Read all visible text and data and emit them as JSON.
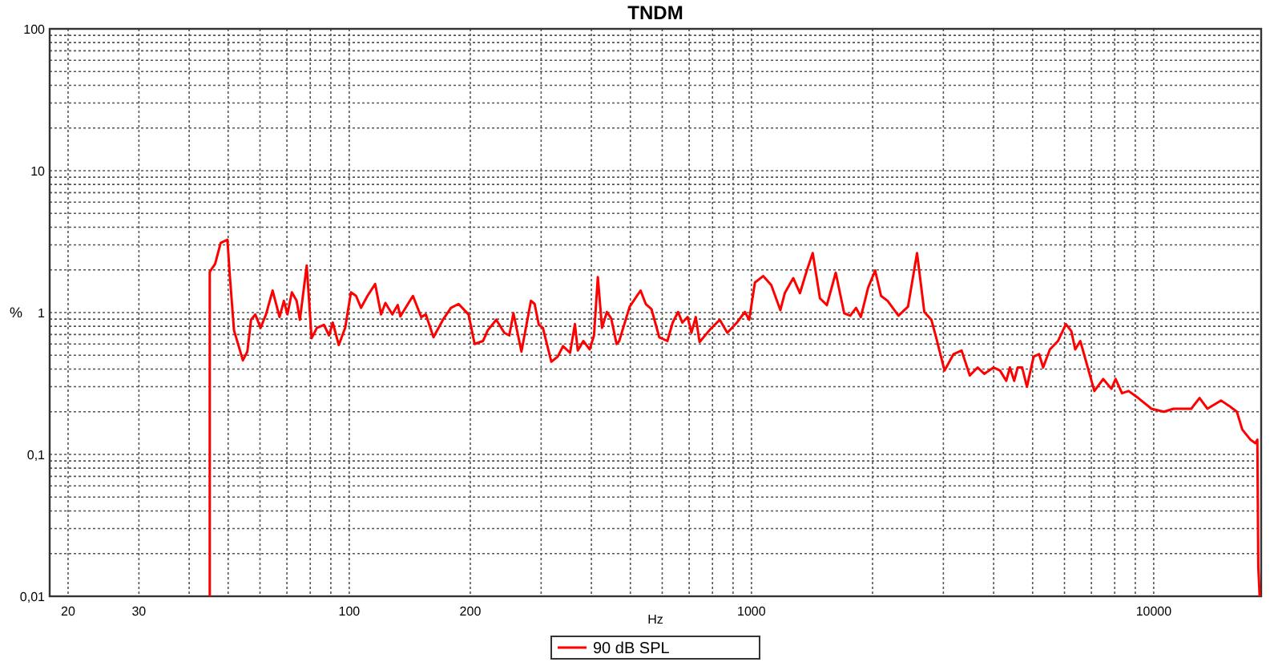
{
  "chart_data": {
    "type": "line",
    "title": "TNDM",
    "xlabel": "Hz",
    "ylabel": "%",
    "log": "xy",
    "grid": true,
    "legend": "bottom",
    "xlim": [
      18,
      18500
    ],
    "ylim": [
      0.01,
      100
    ],
    "xticks": [
      20,
      30,
      {
        "value": 40,
        "label": null
      },
      {
        "value": 50,
        "label": null
      },
      {
        "value": 60,
        "label": null
      },
      {
        "value": 70,
        "label": null
      },
      {
        "value": 80,
        "label": null
      },
      {
        "value": 90,
        "label": null
      },
      100,
      200,
      {
        "value": 300,
        "label": null
      },
      {
        "value": 400,
        "label": null
      },
      {
        "value": 500,
        "label": null
      },
      {
        "value": 600,
        "label": null
      },
      {
        "value": 700,
        "label": null
      },
      {
        "value": 800,
        "label": null
      },
      {
        "value": 900,
        "label": null
      },
      1000,
      {
        "value": 2000,
        "label": null
      },
      {
        "value": 3000,
        "label": null
      },
      {
        "value": 4000,
        "label": null
      },
      {
        "value": 5000,
        "label": null
      },
      {
        "value": 6000,
        "label": null
      },
      {
        "value": 7000,
        "label": null
      },
      {
        "value": 8000,
        "label": null
      },
      {
        "value": 9000,
        "label": null
      },
      10000
    ],
    "yticks": [
      {
        "value": 0.01,
        "label": "0,01"
      },
      {
        "value": 0.02,
        "label": null
      },
      {
        "value": 0.03,
        "label": null
      },
      {
        "value": 0.04,
        "label": null
      },
      {
        "value": 0.05,
        "label": null
      },
      {
        "value": 0.06,
        "label": null
      },
      {
        "value": 0.07,
        "label": null
      },
      {
        "value": 0.08,
        "label": null
      },
      {
        "value": 0.09,
        "label": null
      },
      {
        "value": 0.1,
        "label": "0,1"
      },
      {
        "value": 0.2,
        "label": null
      },
      {
        "value": 0.3,
        "label": null
      },
      {
        "value": 0.4,
        "label": null
      },
      {
        "value": 0.5,
        "label": null
      },
      {
        "value": 0.6,
        "label": null
      },
      {
        "value": 0.7,
        "label": null
      },
      {
        "value": 0.8,
        "label": null
      },
      {
        "value": 0.9,
        "label": null
      },
      1,
      {
        "value": 2,
        "label": null
      },
      {
        "value": 3,
        "label": null
      },
      {
        "value": 4,
        "label": null
      },
      {
        "value": 5,
        "label": null
      },
      {
        "value": 6,
        "label": null
      },
      {
        "value": 7,
        "label": null
      },
      {
        "value": 8,
        "label": null
      },
      {
        "value": 9,
        "label": null
      },
      10,
      {
        "value": 20,
        "label": null
      },
      {
        "value": 30,
        "label": null
      },
      {
        "value": 40,
        "label": null
      },
      {
        "value": 50,
        "label": null
      },
      {
        "value": 60,
        "label": null
      },
      {
        "value": 70,
        "label": null
      },
      {
        "value": 80,
        "label": null
      },
      {
        "value": 90,
        "label": null
      },
      100
    ],
    "series": [
      {
        "name": "90 dB SPL",
        "color": "#ff0000",
        "x": [
          45.0,
          45.0,
          46.4,
          47.9,
          49.8,
          50.4,
          51.7,
          54.4,
          55.8,
          57.0,
          58.4,
          60.2,
          62.1,
          64.5,
          67.1,
          68.8,
          70.2,
          72.0,
          74.0,
          75.4,
          78.4,
          80.6,
          83.1,
          86.5,
          89.1,
          91.0,
          94.2,
          97.7,
          101,
          104,
          107,
          111,
          116,
          120,
          123,
          128,
          132,
          134,
          144,
          151,
          155,
          162,
          171,
          179,
          187,
          198,
          205,
          215,
          221,
          232,
          243,
          250,
          256,
          268,
          283,
          289,
          296,
          303,
          318,
          330,
          340,
          354,
          364,
          370,
          382,
          396,
          406,
          415,
          425,
          437,
          448,
          462,
          469,
          498,
          530,
          546,
          564,
          590,
          618,
          637,
          657,
          673,
          694,
          709,
          727,
          743,
          789,
          834,
          871,
          920,
          963,
          987,
          1020,
          1070,
          1120,
          1180,
          1210,
          1270,
          1320,
          1370,
          1420,
          1480,
          1540,
          1620,
          1700,
          1760,
          1820,
          1870,
          1950,
          2030,
          2100,
          2180,
          2320,
          2450,
          2580,
          2690,
          2800,
          2870,
          3020,
          3180,
          3330,
          3490,
          3650,
          3790,
          4000,
          4150,
          4300,
          4390,
          4500,
          4590,
          4710,
          4840,
          5030,
          5190,
          5310,
          5520,
          5780,
          6050,
          6240,
          6380,
          6570,
          7120,
          7490,
          7850,
          8040,
          8340,
          8660,
          9150,
          9870,
          10600,
          11200,
          11700,
          12400,
          13000,
          13600,
          14700,
          15400,
          16100,
          16600,
          17400,
          17900,
          18100,
          18200,
          18340
        ],
        "values": [
          0.01,
          1.94,
          2.2,
          3.1,
          3.26,
          1.94,
          0.75,
          0.46,
          0.53,
          0.89,
          0.97,
          0.78,
          0.97,
          1.43,
          0.93,
          1.21,
          0.97,
          1.39,
          1.21,
          0.89,
          2.15,
          0.66,
          0.78,
          0.82,
          0.69,
          0.85,
          0.59,
          0.78,
          1.39,
          1.31,
          1.08,
          1.31,
          1.59,
          0.97,
          1.17,
          0.97,
          1.13,
          0.94,
          1.31,
          0.93,
          0.97,
          0.67,
          0.89,
          1.08,
          1.15,
          0.97,
          0.6,
          0.63,
          0.75,
          0.89,
          0.72,
          0.69,
          0.99,
          0.53,
          1.21,
          1.15,
          0.82,
          0.78,
          0.45,
          0.49,
          0.58,
          0.52,
          0.83,
          0.54,
          0.63,
          0.55,
          0.69,
          1.78,
          0.78,
          1.01,
          0.91,
          0.6,
          0.63,
          1.1,
          1.43,
          1.15,
          1.06,
          0.67,
          0.63,
          0.85,
          1.01,
          0.85,
          0.93,
          0.72,
          0.93,
          0.62,
          0.76,
          0.89,
          0.72,
          0.85,
          1.01,
          0.89,
          1.63,
          1.81,
          1.56,
          1.04,
          1.37,
          1.75,
          1.37,
          1.94,
          2.63,
          1.26,
          1.13,
          1.91,
          0.99,
          0.95,
          1.08,
          0.93,
          1.5,
          1.98,
          1.31,
          1.21,
          0.95,
          1.1,
          2.63,
          1.01,
          0.89,
          0.69,
          0.39,
          0.51,
          0.54,
          0.36,
          0.41,
          0.37,
          0.41,
          0.39,
          0.33,
          0.41,
          0.33,
          0.41,
          0.41,
          0.3,
          0.49,
          0.51,
          0.41,
          0.55,
          0.63,
          0.83,
          0.74,
          0.55,
          0.63,
          0.28,
          0.34,
          0.29,
          0.34,
          0.27,
          0.28,
          0.25,
          0.21,
          0.2,
          0.21,
          0.21,
          0.21,
          0.25,
          0.21,
          0.24,
          0.22,
          0.2,
          0.15,
          0.127,
          0.12,
          0.127,
          0.016,
          0.01
        ]
      }
    ]
  }
}
